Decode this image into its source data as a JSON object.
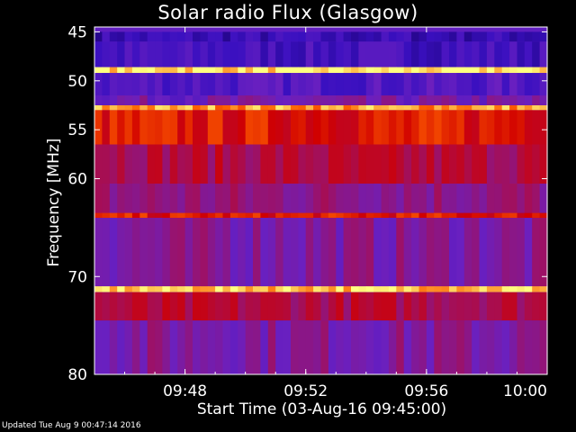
{
  "chart_data": {
    "type": "heatmap",
    "title": "Solar radio Flux (Glasgow)",
    "xlabel": "Start Time (03-Aug-16 09:45:00)",
    "ylabel": "Frequency [MHz]",
    "x_ticks": [
      "09:48",
      "09:52",
      "09:56",
      "10:00"
    ],
    "x_tick_minutes": [
      3,
      7,
      11,
      15
    ],
    "xlim_minutes": [
      0,
      15
    ],
    "y_ticks": [
      45,
      50,
      55,
      60,
      70,
      80
    ],
    "ylim": [
      44.5,
      80
    ],
    "colormap": [
      "#1a0070",
      "#3a10c0",
      "#6a20c0",
      "#a01060",
      "#d00000",
      "#ff6000",
      "#ffff80"
    ],
    "horizontal_bands_mhz": [
      {
        "from": 45.0,
        "to": 46.0,
        "level": 0.15
      },
      {
        "from": 46.0,
        "to": 48.6,
        "level": 0.2
      },
      {
        "from": 48.6,
        "to": 49.2,
        "level": 0.98
      },
      {
        "from": 49.2,
        "to": 51.5,
        "level": 0.25
      },
      {
        "from": 51.5,
        "to": 52.5,
        "level": 0.35
      },
      {
        "from": 52.5,
        "to": 53.0,
        "level": 0.9
      },
      {
        "from": 53.0,
        "to": 56.5,
        "level": 0.7
      },
      {
        "from": 56.5,
        "to": 60.5,
        "level": 0.55
      },
      {
        "from": 60.5,
        "to": 63.5,
        "level": 0.45
      },
      {
        "from": 63.5,
        "to": 64.0,
        "level": 0.7
      },
      {
        "from": 64.0,
        "to": 71.0,
        "level": 0.4
      },
      {
        "from": 71.0,
        "to": 71.6,
        "level": 0.95
      },
      {
        "from": 71.6,
        "to": 74.5,
        "level": 0.55
      },
      {
        "from": 74.5,
        "to": 80.0,
        "level": 0.4
      }
    ]
  },
  "footer": {
    "updated": "Updated Tue Aug  9 00:47:14 2016"
  }
}
